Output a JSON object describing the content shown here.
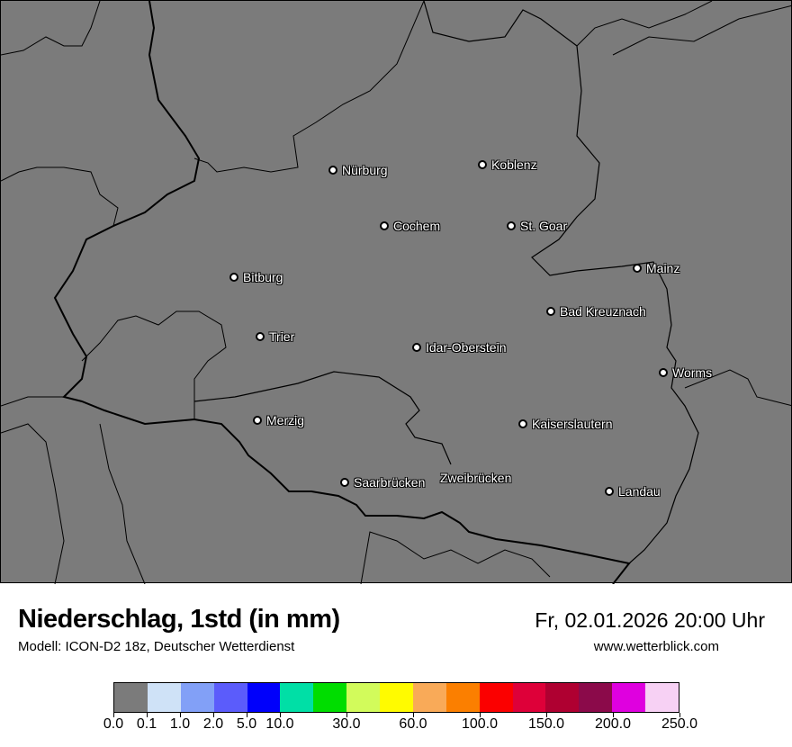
{
  "map": {
    "cities": [
      {
        "name": "Nürburg"
      },
      {
        "name": "Koblenz"
      },
      {
        "name": "Cochem"
      },
      {
        "name": "St. Goar"
      },
      {
        "name": "Bitburg"
      },
      {
        "name": "Mainz"
      },
      {
        "name": "Bad Kreuznach"
      },
      {
        "name": "Trier"
      },
      {
        "name": "Idar-Oberstein"
      },
      {
        "name": "Worms"
      },
      {
        "name": "Merzig"
      },
      {
        "name": "Kaiserslautern"
      },
      {
        "name": "Saarbrücken"
      },
      {
        "name": "Zweibrücken"
      },
      {
        "name": "Landau"
      }
    ],
    "background_color": "#7b7b7b"
  },
  "header": {
    "title": "Niederschlag, 1std (in mm)",
    "subtitle": "Modell: ICON-D2 18z, Deutscher Wetterdienst",
    "datetime": "Fr, 02.01.2026 20:00 Uhr",
    "website": "www.wetterblick.com"
  },
  "legend": {
    "colors": [
      "#7b7b7b",
      "#cfe2f7",
      "#82a0f7",
      "#5b5cfb",
      "#0000fb",
      "#00dfa6",
      "#00dd00",
      "#d2fb5b",
      "#fffb00",
      "#f9aa58",
      "#fb7f00",
      "#fb0000",
      "#de0039",
      "#af0031",
      "#8b0a4a",
      "#df00df",
      "#f7d1f4"
    ],
    "ticks": [
      "0.0",
      "0.1",
      "1.0",
      "2.0",
      "5.0",
      "10.0",
      "30.0",
      "60.0",
      "100.0",
      "150.0",
      "200.0",
      "250.0"
    ],
    "tick_segments": [
      0,
      1,
      2,
      3,
      4,
      5,
      7,
      9,
      11,
      13,
      15,
      17
    ]
  }
}
